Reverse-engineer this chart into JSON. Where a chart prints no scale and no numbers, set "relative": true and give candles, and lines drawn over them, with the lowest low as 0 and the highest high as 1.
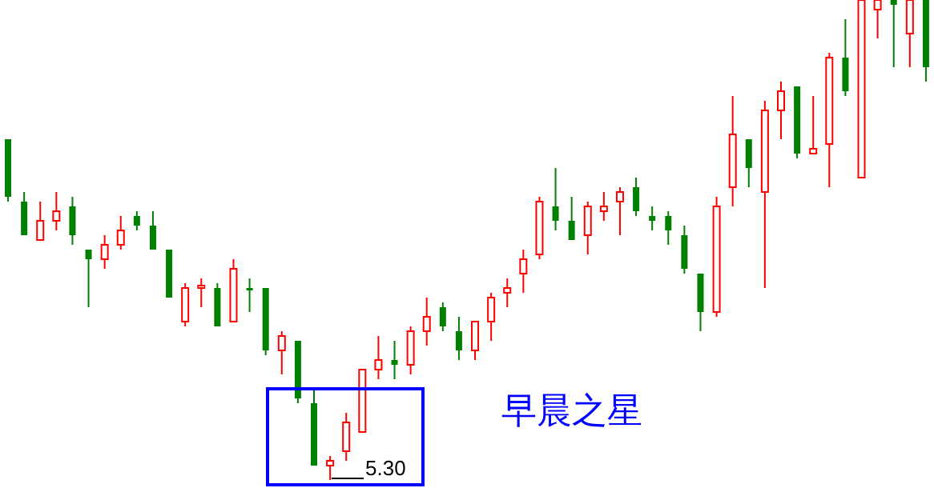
{
  "chart_data": {
    "type": "candlestick",
    "relative": true,
    "categories": [
      null,
      null,
      null,
      null,
      null,
      null,
      null,
      null,
      null,
      null,
      null,
      null,
      null,
      null,
      null,
      null,
      null,
      null,
      null,
      null,
      null,
      null,
      null,
      null,
      null,
      null,
      null,
      null,
      null,
      null,
      null,
      null,
      null,
      null,
      null,
      null,
      null,
      null,
      null,
      null,
      null,
      null,
      null,
      null,
      null,
      null,
      null,
      null,
      null,
      null,
      null,
      null,
      null,
      null,
      null,
      null,
      null,
      null
    ],
    "ohlc": [
      [
        0.71,
        0.71,
        0.58,
        0.59
      ],
      [
        0.58,
        0.6,
        0.51,
        0.51
      ],
      [
        0.5,
        0.58,
        0.5,
        0.54
      ],
      [
        0.54,
        0.6,
        0.52,
        0.56
      ],
      [
        0.57,
        0.59,
        0.49,
        0.51
      ],
      [
        0.48,
        0.48,
        0.36,
        0.46
      ],
      [
        0.46,
        0.51,
        0.44,
        0.49
      ],
      [
        0.49,
        0.55,
        0.48,
        0.52
      ],
      [
        0.55,
        0.56,
        0.52,
        0.53
      ],
      [
        0.53,
        0.56,
        0.48,
        0.48
      ],
      [
        0.48,
        0.48,
        0.38,
        0.38
      ],
      [
        0.33,
        0.41,
        0.32,
        0.4
      ],
      [
        0.4,
        0.42,
        0.36,
        0.405
      ],
      [
        0.4,
        0.41,
        0.32,
        0.32
      ],
      [
        0.33,
        0.46,
        0.33,
        0.44
      ],
      [
        0.4,
        0.42,
        0.35,
        0.395
      ],
      [
        0.4,
        0.4,
        0.26,
        0.27
      ],
      [
        0.27,
        0.31,
        0.22,
        0.3
      ],
      [
        0.29,
        0.29,
        0.16,
        0.17
      ],
      [
        0.16,
        0.19,
        0.03,
        0.03
      ],
      [
        0.03,
        0.05,
        0,
        0.04
      ],
      [
        0.06,
        0.14,
        0.04,
        0.12
      ],
      [
        0.1,
        0.23,
        0.1,
        0.23
      ],
      [
        0.23,
        0.3,
        0.21,
        0.25
      ],
      [
        0.25,
        0.29,
        0.21,
        0.24
      ],
      [
        0.24,
        0.32,
        0.22,
        0.31
      ],
      [
        0.31,
        0.38,
        0.28,
        0.34
      ],
      [
        0.36,
        0.37,
        0.31,
        0.32
      ],
      [
        0.31,
        0.34,
        0.25,
        0.27
      ],
      [
        0.27,
        0.33,
        0.25,
        0.33
      ],
      [
        0.33,
        0.39,
        0.29,
        0.38
      ],
      [
        0.39,
        0.42,
        0.36,
        0.4
      ],
      [
        0.43,
        0.48,
        0.39,
        0.46
      ],
      [
        0.47,
        0.59,
        0.46,
        0.58
      ],
      [
        0.57,
        0.65,
        0.52,
        0.54
      ],
      [
        0.54,
        0.59,
        0.5,
        0.5
      ],
      [
        0.51,
        0.58,
        0.47,
        0.57
      ],
      [
        0.56,
        0.6,
        0.54,
        0.57
      ],
      [
        0.58,
        0.61,
        0.51,
        0.6
      ],
      [
        0.61,
        0.63,
        0.55,
        0.56
      ],
      [
        0.55,
        0.57,
        0.52,
        0.54
      ],
      [
        0.55,
        0.56,
        0.49,
        0.52
      ],
      [
        0.51,
        0.53,
        0.43,
        0.44
      ],
      [
        0.43,
        0.43,
        0.31,
        0.35
      ],
      [
        0.35,
        0.59,
        0.34,
        0.57
      ],
      [
        0.61,
        0.8,
        0.57,
        0.72
      ],
      [
        0.71,
        0.71,
        0.61,
        0.65
      ],
      [
        0.6,
        0.79,
        0.4,
        0.77
      ],
      [
        0.77,
        0.83,
        0.71,
        0.81
      ],
      [
        0.82,
        0.82,
        0.67,
        0.68
      ],
      [
        0.68,
        0.8,
        0.68,
        0.69
      ],
      [
        0.7,
        0.89,
        0.61,
        0.88
      ],
      [
        0.88,
        0.96,
        0.8,
        0.81
      ],
      [
        0.63,
        1,
        0.63,
        1
      ],
      [
        0.98,
        1,
        0.92,
        1
      ],
      [
        1,
        1,
        0.86,
        0.99
      ],
      [
        0.93,
        1,
        0.86,
        1
      ],
      [
        1,
        1,
        0.83,
        0.86
      ]
    ],
    "colors": [
      "#008000",
      "#008000",
      "#ff0000",
      "#ff0000",
      "#008000",
      "#008000",
      "#ff0000",
      "#ff0000",
      "#008000",
      "#008000",
      "#008000",
      "#ff0000",
      "#ff0000",
      "#008000",
      "#ff0000",
      "#008000",
      "#008000",
      "#ff0000",
      "#008000",
      "#008000",
      "#ff0000",
      "#ff0000",
      "#ff0000",
      "#ff0000",
      "#008000",
      "#ff0000",
      "#ff0000",
      "#008000",
      "#008000",
      "#ff0000",
      "#ff0000",
      "#ff0000",
      "#ff0000",
      "#ff0000",
      "#008000",
      "#008000",
      "#ff0000",
      "#ff0000",
      "#ff0000",
      "#008000",
      "#008000",
      "#008000",
      "#008000",
      "#008000",
      "#ff0000",
      "#ff0000",
      "#008000",
      "#ff0000",
      "#ff0000",
      "#008000",
      "#ff0000",
      "#ff0000",
      "#008000",
      "#ff0000",
      "#ff0000",
      "#008000",
      "#ff0000",
      "#008000"
    ],
    "annotations": [
      "5.30",
      "早晨之星"
    ]
  }
}
